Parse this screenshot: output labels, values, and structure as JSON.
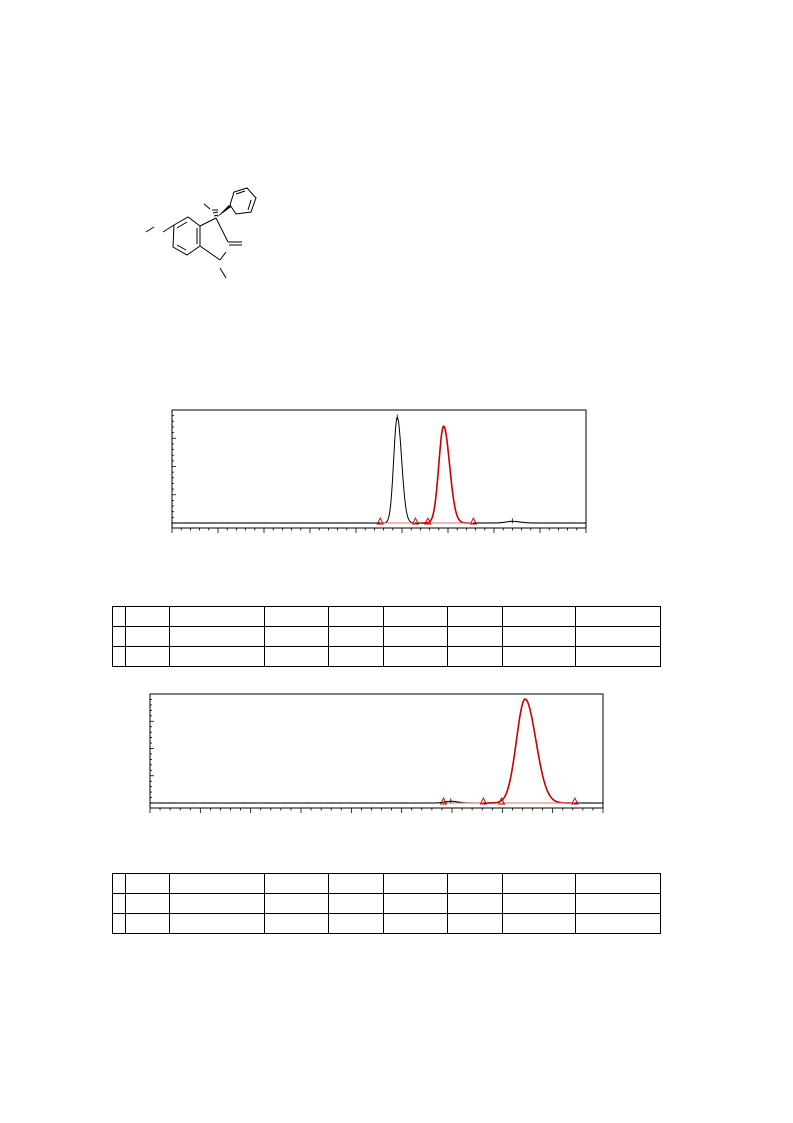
{
  "structure": {
    "name": "molecule-structure-drawing"
  },
  "colors": {
    "axis": "#000000",
    "trace": "#000000",
    "integration": "#cc0000",
    "baseline": "#e07070"
  },
  "chart_data": [
    {
      "type": "line",
      "title": "",
      "xlabel": "",
      "ylabel": "",
      "xlim": [
        0,
        100
      ],
      "ylim": [
        0,
        100
      ],
      "series": [
        {
          "x": [
            0,
            45,
            48.5,
            50,
            53,
            55,
            60,
            63.5,
            66.8,
            71,
            74,
            100
          ],
          "y": [
            0,
            0,
            8,
            96,
            15,
            0,
            8,
            88,
            20,
            0,
            0,
            0
          ]
        }
      ],
      "peaks": [
        {
          "center": 54.4,
          "height": 96,
          "width": 0.85,
          "integrated": false
        },
        {
          "center": 65.6,
          "height": 88,
          "width": 1.15,
          "integrated": true
        },
        {
          "center": 82.2,
          "height": 1.5,
          "width": 1.5,
          "integrated": false
        }
      ],
      "integration_markers": [
        50.3,
        58.8,
        61.8,
        72.8
      ]
    },
    {
      "type": "line",
      "title": "",
      "xlabel": "",
      "ylabel": "",
      "xlim": [
        0,
        100
      ],
      "ylim": [
        0,
        100
      ],
      "series": [
        {
          "x": [
            0,
            70,
            66.4,
            80,
            82,
            100
          ],
          "y": [
            0,
            0.8,
            1.5,
            0,
            98,
            0
          ]
        }
      ],
      "peaks": [
        {
          "center": 66.4,
          "height": 1.6,
          "width": 1.3,
          "integrated": false
        },
        {
          "center": 82.8,
          "height": 98,
          "width": 1.9,
          "integrated": true
        }
      ],
      "integration_markers": [
        64.8,
        73.6,
        77.6,
        93.8
      ]
    }
  ],
  "tables": [
    {
      "rows": [
        [
          "",
          "",
          "",
          "",
          "",
          "",
          "",
          "",
          ""
        ],
        [
          "",
          "",
          "",
          "",
          "",
          "",
          "",
          "",
          ""
        ],
        [
          "",
          "",
          "",
          "",
          "",
          "",
          "",
          "",
          ""
        ]
      ]
    },
    {
      "rows": [
        [
          "",
          "",
          "",
          "",
          "",
          "",
          "",
          "",
          ""
        ],
        [
          "",
          "",
          "",
          "",
          "",
          "",
          "",
          "",
          ""
        ],
        [
          "",
          "",
          "",
          "",
          "",
          "",
          "",
          "",
          ""
        ]
      ]
    }
  ]
}
